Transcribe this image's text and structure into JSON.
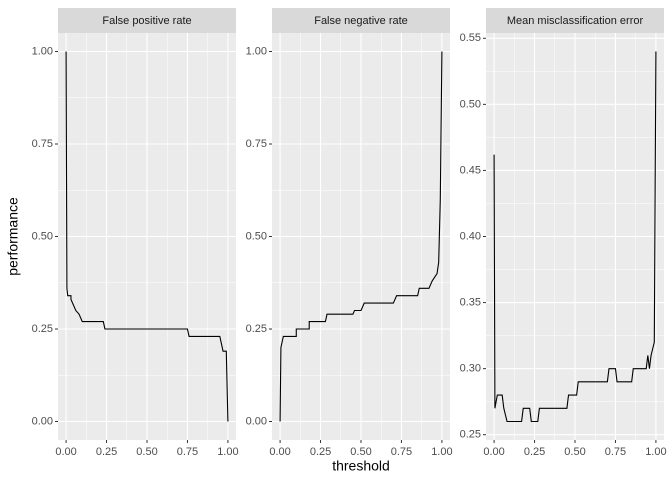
{
  "chart_data": [
    {
      "type": "line",
      "title": "False positive rate",
      "ylabel": "performance",
      "x": [
        0,
        0.005,
        0.01,
        0.03,
        0.03,
        0.06,
        0.08,
        0.1,
        0.23,
        0.24,
        0.75,
        0.76,
        0.95,
        0.96,
        0.97,
        0.99,
        1.0
      ],
      "series": [
        {
          "color": "#000000",
          "values": [
            1.0,
            0.36,
            0.34,
            0.34,
            0.33,
            0.3,
            0.29,
            0.27,
            0.27,
            0.25,
            0.25,
            0.23,
            0.23,
            0.21,
            0.19,
            0.19,
            0.0
          ]
        }
      ],
      "xlim": [
        -0.05,
        1.05
      ],
      "ylim": [
        -0.05,
        1.05
      ],
      "xticks": [
        {
          "value": 0,
          "label": "0.00"
        },
        {
          "value": 0.25,
          "label": "0.25"
        },
        {
          "value": 0.5,
          "label": "0.50"
        },
        {
          "value": 0.75,
          "label": "0.75"
        },
        {
          "value": 1,
          "label": "1.00"
        }
      ],
      "yticks": [
        {
          "value": 0,
          "label": "0.00"
        },
        {
          "value": 0.25,
          "label": "0.25"
        },
        {
          "value": 0.5,
          "label": "0.50"
        },
        {
          "value": 0.75,
          "label": "0.75"
        },
        {
          "value": 1,
          "label": "1.00"
        }
      ],
      "grid": true
    },
    {
      "type": "line",
      "title": "False negative rate",
      "xlabel": "threshold",
      "x": [
        0,
        0.005,
        0.02,
        0.1,
        0.1,
        0.18,
        0.18,
        0.28,
        0.29,
        0.45,
        0.46,
        0.5,
        0.52,
        0.7,
        0.72,
        0.85,
        0.86,
        0.92,
        0.94,
        0.97,
        0.98,
        0.99,
        1.0
      ],
      "series": [
        {
          "color": "#000000",
          "values": [
            0,
            0.2,
            0.23,
            0.23,
            0.25,
            0.25,
            0.27,
            0.27,
            0.29,
            0.29,
            0.3,
            0.3,
            0.32,
            0.32,
            0.34,
            0.34,
            0.36,
            0.36,
            0.38,
            0.4,
            0.43,
            0.6,
            1.0
          ]
        }
      ],
      "xlim": [
        -0.05,
        1.05
      ],
      "ylim": [
        -0.05,
        1.05
      ],
      "xticks": [
        {
          "value": 0,
          "label": "0.00"
        },
        {
          "value": 0.25,
          "label": "0.25"
        },
        {
          "value": 0.5,
          "label": "0.50"
        },
        {
          "value": 0.75,
          "label": "0.75"
        },
        {
          "value": 1,
          "label": "1.00"
        }
      ],
      "yticks": [
        {
          "value": 0,
          "label": "0.00"
        },
        {
          "value": 0.25,
          "label": "0.25"
        },
        {
          "value": 0.5,
          "label": "0.50"
        },
        {
          "value": 0.75,
          "label": "0.75"
        },
        {
          "value": 1,
          "label": "1.00"
        }
      ],
      "grid": true
    },
    {
      "type": "line",
      "title": "Mean misclassification error",
      "x": [
        0,
        0.005,
        0.02,
        0.05,
        0.06,
        0.08,
        0.17,
        0.18,
        0.22,
        0.23,
        0.27,
        0.28,
        0.45,
        0.46,
        0.51,
        0.52,
        0.7,
        0.71,
        0.75,
        0.76,
        0.85,
        0.86,
        0.94,
        0.95,
        0.96,
        0.97,
        0.99,
        1.0
      ],
      "series": [
        {
          "color": "#000000",
          "values": [
            0.462,
            0.27,
            0.28,
            0.28,
            0.27,
            0.26,
            0.26,
            0.27,
            0.27,
            0.26,
            0.26,
            0.27,
            0.27,
            0.28,
            0.28,
            0.29,
            0.29,
            0.3,
            0.3,
            0.29,
            0.29,
            0.3,
            0.3,
            0.31,
            0.3,
            0.31,
            0.32,
            0.54
          ]
        }
      ],
      "xlim": [
        -0.05,
        1.05
      ],
      "ylim": [
        0.246,
        0.554
      ],
      "xticks": [
        {
          "value": 0,
          "label": "0.00"
        },
        {
          "value": 0.25,
          "label": "0.25"
        },
        {
          "value": 0.5,
          "label": "0.50"
        },
        {
          "value": 0.75,
          "label": "0.75"
        },
        {
          "value": 1,
          "label": "1.00"
        }
      ],
      "yticks": [
        {
          "value": 0.25,
          "label": "0.25"
        },
        {
          "value": 0.3,
          "label": "0.30"
        },
        {
          "value": 0.35,
          "label": "0.35"
        },
        {
          "value": 0.4,
          "label": "0.40"
        },
        {
          "value": 0.45,
          "label": "0.45"
        },
        {
          "value": 0.5,
          "label": "0.50"
        },
        {
          "value": 0.55,
          "label": "0.55"
        }
      ],
      "grid": true
    }
  ]
}
